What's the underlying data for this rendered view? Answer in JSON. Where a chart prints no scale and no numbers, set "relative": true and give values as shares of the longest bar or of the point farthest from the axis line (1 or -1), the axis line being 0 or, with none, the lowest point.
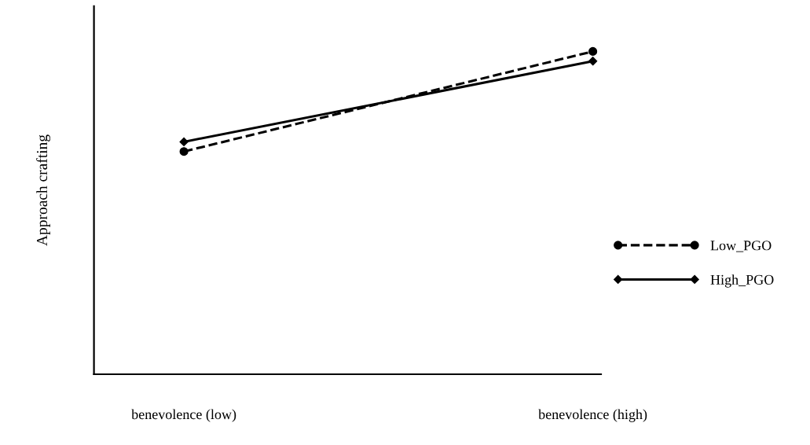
{
  "chart_data": {
    "type": "line",
    "ylabel": "Approach crafting",
    "relative": true,
    "categories": [
      "benevolence (low)",
      "benevolence (high)"
    ],
    "series": [
      {
        "name": "Low_PGO",
        "color": "#000000",
        "values": [
          0.69,
          1
        ],
        "marker": "circle",
        "line_style": "dashed"
      },
      {
        "name": "High_PGO",
        "color": "#000000",
        "values": [
          0.72,
          0.97
        ],
        "marker": "diamond",
        "line_style": "solid"
      }
    ],
    "legend": "right",
    "grid": false
  }
}
